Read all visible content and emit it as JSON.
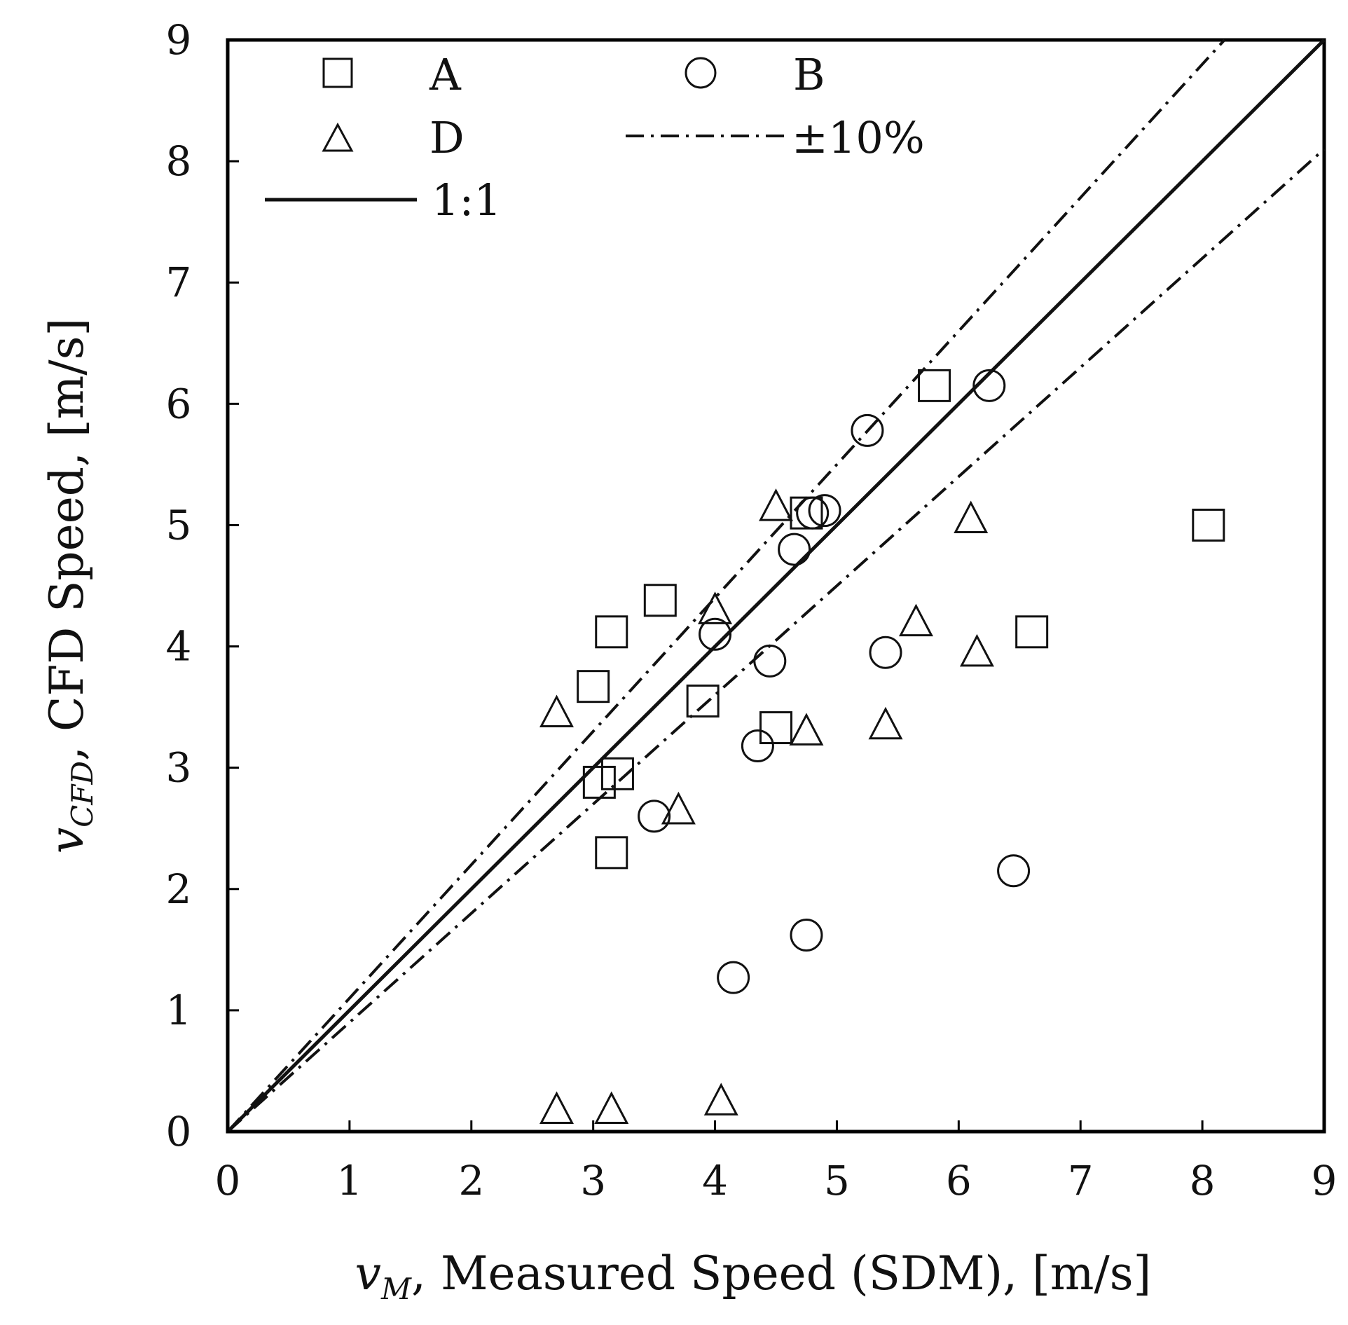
{
  "chart_data": {
    "type": "scatter",
    "title": "",
    "xlabel": {
      "symbol": "v",
      "subscript": "M",
      "text": ", Measured Speed (SDM), [m/s]"
    },
    "ylabel": {
      "symbol": "v",
      "subscript": "CFD",
      "text": ", CFD Speed, [m/s]"
    },
    "xlim": [
      0,
      9
    ],
    "ylim": [
      0,
      9
    ],
    "xticks": [
      "0",
      "1",
      "2",
      "3",
      "4",
      "5",
      "6",
      "7",
      "8",
      "9"
    ],
    "yticks": [
      "0",
      "1",
      "2",
      "3",
      "4",
      "5",
      "6",
      "7",
      "8",
      "9"
    ],
    "grid": false,
    "legend_position": "top-left inside",
    "series": [
      {
        "name": "A",
        "marker": "square",
        "points": [
          [
            5.8,
            6.15
          ],
          [
            8.05,
            5.0
          ],
          [
            4.75,
            5.1
          ],
          [
            3.55,
            4.38
          ],
          [
            3.15,
            4.12
          ],
          [
            6.6,
            4.12
          ],
          [
            3.0,
            3.67
          ],
          [
            3.9,
            3.55
          ],
          [
            4.5,
            3.33
          ],
          [
            3.2,
            2.95
          ],
          [
            3.05,
            2.88
          ],
          [
            3.15,
            2.3
          ]
        ]
      },
      {
        "name": "B",
        "marker": "circle",
        "points": [
          [
            6.25,
            6.15
          ],
          [
            5.25,
            5.78
          ],
          [
            4.9,
            5.12
          ],
          [
            4.8,
            5.1
          ],
          [
            4.65,
            4.8
          ],
          [
            4.0,
            4.1
          ],
          [
            4.45,
            3.88
          ],
          [
            5.4,
            3.95
          ],
          [
            4.35,
            3.18
          ],
          [
            3.5,
            2.6
          ],
          [
            6.45,
            2.15
          ],
          [
            4.75,
            1.62
          ],
          [
            4.15,
            1.27
          ]
        ]
      },
      {
        "name": "D",
        "marker": "triangle",
        "points": [
          [
            4.5,
            5.15
          ],
          [
            6.1,
            5.05
          ],
          [
            4.0,
            4.3
          ],
          [
            5.65,
            4.2
          ],
          [
            6.15,
            3.95
          ],
          [
            2.7,
            3.45
          ],
          [
            5.4,
            3.35
          ],
          [
            4.75,
            3.3
          ],
          [
            3.7,
            2.65
          ],
          [
            2.7,
            0.18
          ],
          [
            3.15,
            0.18
          ],
          [
            4.05,
            0.25
          ]
        ]
      }
    ],
    "lines": [
      {
        "name": "1:1",
        "style": "solid",
        "slope": 1.0
      },
      {
        "name": "±10%",
        "style": "dash-dot",
        "slope_upper": 1.1,
        "slope_lower": 0.9
      }
    ]
  },
  "legend": {
    "a_label": "A",
    "b_label": "B",
    "d_label": "D",
    "tol_label": "±10%",
    "one_to_one_label": "1:1"
  }
}
